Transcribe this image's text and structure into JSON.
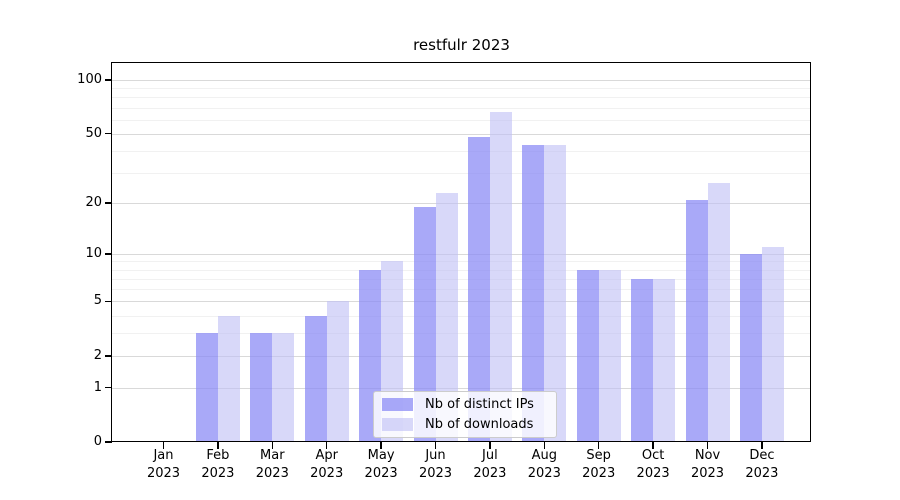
{
  "chart_data": {
    "type": "bar",
    "title": "restfulr 2023",
    "categories": [
      "Jan",
      "Feb",
      "Mar",
      "Apr",
      "May",
      "Jun",
      "Jul",
      "Aug",
      "Sep",
      "Oct",
      "Nov",
      "Dec"
    ],
    "year": "2023",
    "series": [
      {
        "name": "Nb of distinct IPs",
        "values": [
          0,
          3,
          3,
          4,
          8,
          19,
          48,
          43,
          8,
          7,
          21,
          10
        ],
        "color": "rgba(136,136,245,0.72)"
      },
      {
        "name": "Nb of downloads",
        "values": [
          0,
          4,
          3,
          5,
          9,
          23,
          66,
          43,
          8,
          7,
          26,
          11
        ],
        "color": "rgba(190,190,245,0.6)"
      }
    ],
    "yscale": "log10(1+x)",
    "ylim": [
      0,
      124.4
    ],
    "yticks": [
      0,
      1,
      2,
      5,
      10,
      20,
      50,
      100
    ],
    "minor_gridlines": [
      3,
      4,
      6,
      7,
      8,
      9,
      30,
      40,
      60,
      70,
      80,
      90
    ],
    "grid": "on",
    "legend_position": "lower center",
    "colors": {
      "axis": "#000000",
      "grid_major": "#d9d9d9",
      "grid_minor": "#f1f1f1",
      "text": "#000000",
      "legend_border": "#cccccc",
      "legend_bg": "rgba(255,255,255,0.82)"
    }
  }
}
